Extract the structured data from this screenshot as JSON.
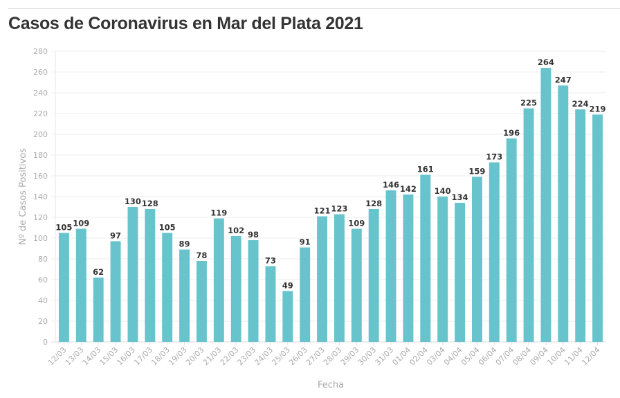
{
  "chart_data": {
    "type": "bar",
    "title": "Casos de Coronavirus en Mar del Plata 2021",
    "xlabel": "Fecha",
    "ylabel": "Nº de Casos Positivos",
    "ylim": [
      0,
      280
    ],
    "yticks": [
      0,
      20,
      40,
      60,
      80,
      100,
      120,
      140,
      160,
      180,
      200,
      220,
      240,
      260,
      280
    ],
    "grid": true,
    "bar_color": "#67c4cc",
    "categories": [
      "12/03",
      "13/03",
      "14/03",
      "15/03",
      "16/03",
      "17/03",
      "18/03",
      "19/03",
      "20/03",
      "21/03",
      "22/03",
      "23/03",
      "24/03",
      "25/03",
      "26/03",
      "27/03",
      "28/03",
      "29/03",
      "30/03",
      "31/03",
      "01/04",
      "02/04",
      "03/04",
      "04/04",
      "05/04",
      "06/04",
      "07/04",
      "08/04",
      "09/04",
      "10/04",
      "11/04",
      "12/04"
    ],
    "values": [
      105,
      109,
      62,
      97,
      130,
      128,
      105,
      89,
      78,
      119,
      102,
      98,
      73,
      49,
      91,
      121,
      123,
      109,
      128,
      146,
      142,
      161,
      140,
      134,
      159,
      173,
      196,
      225,
      264,
      247,
      224,
      219
    ]
  }
}
